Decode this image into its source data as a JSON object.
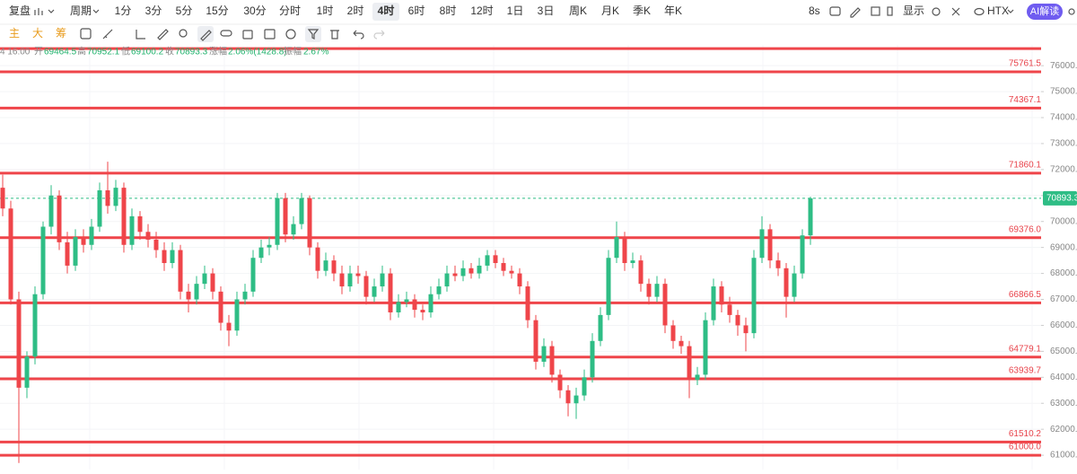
{
  "toolbar": {
    "replay": "复盘",
    "period": "周期",
    "intervals": [
      "1分",
      "3分",
      "5分",
      "15分",
      "30分",
      "分时",
      "1时",
      "2时",
      "4时",
      "6时",
      "8时",
      "12时",
      "1日",
      "3日",
      "周K",
      "月K",
      "季K",
      "年K"
    ],
    "selected": 8,
    "refresh": "8s",
    "display": "显示",
    "exchange": "HTX",
    "ai": "AI解读",
    "main": "主",
    "big": "大",
    "chips": "筹"
  },
  "info": {
    "time": "4 16:00",
    "open_label": "开",
    "high_label": "高",
    "low_label": "低",
    "close_label": "收",
    "change_label": "涨幅",
    "change": "2.06%(1428.8)",
    "amplitude_label": "振幅",
    "amplitude": "2.67%"
  },
  "chart_data": {
    "type": "candlestick",
    "up_color": "#2ebd85",
    "down_color": "#ef454a",
    "level_color": "#ef454a",
    "grid": true,
    "ylim": [
      60450,
      76800
    ],
    "yticks": [
      {
        "value": 61000,
        "label": "61000.0"
      },
      {
        "value": 62000,
        "label": "62000.0"
      },
      {
        "value": 63000,
        "label": "63000.0"
      },
      {
        "value": 64000,
        "label": "64000.0"
      },
      {
        "value": 65000,
        "label": "65000.0"
      },
      {
        "value": 66000,
        "label": "66000.0"
      },
      {
        "value": 67000,
        "label": "67000.0"
      },
      {
        "value": 68000,
        "label": "68000.0"
      },
      {
        "value": 69000,
        "label": "69000.0"
      },
      {
        "value": 70000,
        "label": "70000.0"
      },
      {
        "value": 71000,
        "label": "71000.0"
      },
      {
        "value": 72000,
        "label": "72000.0"
      },
      {
        "value": 73000,
        "label": "73000.0"
      },
      {
        "value": 74000,
        "label": "74000.0"
      },
      {
        "value": 75000,
        "label": "75000.0"
      },
      {
        "value": 76000,
        "label": "76000.0"
      }
    ],
    "levels": {
      "values": [
        76657,
        75761.5,
        74367.1,
        71860.1,
        69376,
        66866.5,
        64779.1,
        63939.7,
        61510.2,
        61000
      ],
      "value_labels": [
        null,
        "75761.5",
        "74367.1",
        "71860.1",
        "69376.0",
        "66866.5",
        "64779.1",
        "63939.7",
        "61510.2",
        "61000.0"
      ]
    },
    "candles": [
      [
        71300,
        71800,
        70200,
        70500
      ],
      [
        70500,
        70800,
        66800,
        67000
      ],
      [
        67000,
        67300,
        60700,
        63600
      ],
      [
        63600,
        65000,
        63200,
        64800
      ],
      [
        64800,
        67500,
        64500,
        67200
      ],
      [
        67200,
        70000,
        67000,
        69800
      ],
      [
        69800,
        71400,
        69500,
        71000
      ],
      [
        71000,
        71200,
        68900,
        69200
      ],
      [
        69200,
        69600,
        68000,
        68300
      ],
      [
        68300,
        69700,
        68100,
        69400
      ],
      [
        69400,
        69700,
        68800,
        69100
      ],
      [
        69100,
        70100,
        68900,
        69800
      ],
      [
        69800,
        71500,
        69600,
        71200
      ],
      [
        71200,
        72300,
        70300,
        70600
      ],
      [
        70600,
        71600,
        70400,
        71300
      ],
      [
        71300,
        71500,
        68800,
        69100
      ],
      [
        69100,
        70500,
        68900,
        70200
      ],
      [
        70200,
        70400,
        69300,
        69600
      ],
      [
        69600,
        69900,
        69000,
        69300
      ],
      [
        69300,
        69600,
        68600,
        68900
      ],
      [
        68900,
        69200,
        68100,
        68400
      ],
      [
        68400,
        69200,
        68200,
        68900
      ],
      [
        68900,
        69100,
        67000,
        67300
      ],
      [
        67300,
        67600,
        66500,
        67000
      ],
      [
        67000,
        67900,
        66800,
        67600
      ],
      [
        67600,
        68300,
        67400,
        68000
      ],
      [
        68000,
        68200,
        67000,
        67300
      ],
      [
        67300,
        67500,
        65800,
        66100
      ],
      [
        66100,
        66400,
        65200,
        65800
      ],
      [
        65800,
        67300,
        65600,
        67000
      ],
      [
        67000,
        67600,
        66800,
        67300
      ],
      [
        67300,
        68900,
        67100,
        68600
      ],
      [
        68600,
        69300,
        68400,
        69000
      ],
      [
        69000,
        69400,
        68700,
        69100
      ],
      [
        69100,
        71100,
        68900,
        70900
      ],
      [
        70900,
        71100,
        69200,
        69500
      ],
      [
        69500,
        70200,
        69300,
        69900
      ],
      [
        69900,
        71100,
        69700,
        70900
      ],
      [
        70900,
        71000,
        68700,
        69000
      ],
      [
        69000,
        69200,
        67800,
        68100
      ],
      [
        68100,
        68800,
        67900,
        68500
      ],
      [
        68500,
        68700,
        67700,
        68000
      ],
      [
        68000,
        68300,
        67200,
        67500
      ],
      [
        67500,
        68300,
        67300,
        68000
      ],
      [
        68000,
        68300,
        67600,
        67900
      ],
      [
        67900,
        68100,
        66800,
        67100
      ],
      [
        67100,
        67800,
        66900,
        67500
      ],
      [
        67500,
        68300,
        67300,
        68000
      ],
      [
        68000,
        68200,
        66200,
        66500
      ],
      [
        66500,
        67200,
        66300,
        66900
      ],
      [
        66900,
        67300,
        66700,
        67000
      ],
      [
        67000,
        67200,
        66300,
        66600
      ],
      [
        66600,
        66800,
        66200,
        66500
      ],
      [
        66500,
        67500,
        66300,
        67200
      ],
      [
        67200,
        67800,
        67000,
        67500
      ],
      [
        67500,
        68300,
        67300,
        68000
      ],
      [
        68000,
        68300,
        67700,
        67900
      ],
      [
        67900,
        68500,
        67700,
        68200
      ],
      [
        68200,
        68400,
        67800,
        68000
      ],
      [
        68000,
        68600,
        67800,
        68300
      ],
      [
        68300,
        68900,
        68100,
        68700
      ],
      [
        68700,
        68900,
        68200,
        68400
      ],
      [
        68400,
        68600,
        67900,
        68100
      ],
      [
        68100,
        68300,
        67800,
        68000
      ],
      [
        68000,
        68200,
        67200,
        67500
      ],
      [
        67500,
        67700,
        65900,
        66200
      ],
      [
        66200,
        66400,
        64300,
        64600
      ],
      [
        64600,
        65500,
        64400,
        65200
      ],
      [
        65200,
        65400,
        63800,
        64100
      ],
      [
        64100,
        64300,
        63200,
        63500
      ],
      [
        63500,
        63700,
        62500,
        63000
      ],
      [
        63000,
        63600,
        62400,
        63300
      ],
      [
        63300,
        64300,
        63100,
        64000
      ],
      [
        64000,
        65700,
        63800,
        65400
      ],
      [
        65400,
        66700,
        65200,
        66400
      ],
      [
        66400,
        68900,
        66200,
        68600
      ],
      [
        68600,
        70000,
        68400,
        69400
      ],
      [
        69400,
        69600,
        68100,
        68400
      ],
      [
        68400,
        68800,
        68200,
        68500
      ],
      [
        68500,
        68700,
        67300,
        67600
      ],
      [
        67600,
        67800,
        66800,
        67100
      ],
      [
        67100,
        67900,
        66900,
        67600
      ],
      [
        67600,
        67800,
        65700,
        66000
      ],
      [
        66000,
        66200,
        65100,
        65400
      ],
      [
        65400,
        65600,
        64900,
        65200
      ],
      [
        65200,
        65400,
        63200,
        63900
      ],
      [
        63900,
        64400,
        63700,
        64100
      ],
      [
        64100,
        66500,
        63900,
        66200
      ],
      [
        66200,
        67800,
        66000,
        67500
      ],
      [
        67500,
        67700,
        66500,
        66800
      ],
      [
        66800,
        67100,
        66100,
        66400
      ],
      [
        66400,
        66600,
        65600,
        66000
      ],
      [
        66000,
        66300,
        65000,
        65700
      ],
      [
        65700,
        68900,
        65500,
        68600
      ],
      [
        68600,
        70200,
        68400,
        69700
      ],
      [
        69700,
        69900,
        68200,
        68500
      ],
      [
        68500,
        68800,
        67900,
        68200
      ],
      [
        68200,
        68400,
        66300,
        67100
      ],
      [
        67100,
        68300,
        66900,
        68000
      ],
      [
        68000,
        69700,
        67800,
        69464.5
      ],
      [
        69464.5,
        70952.1,
        69100.2,
        70893.3
      ]
    ]
  }
}
